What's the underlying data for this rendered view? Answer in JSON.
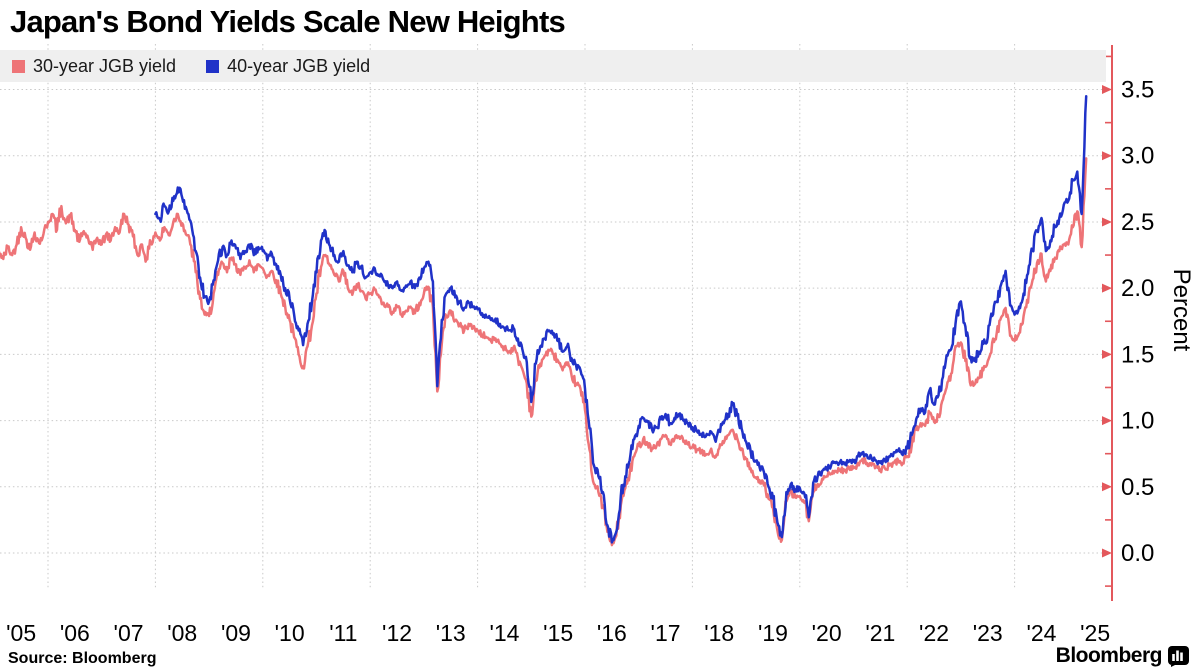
{
  "title": "Japan's Bond Yields Scale New Heights",
  "footer": {
    "source": "Source: Bloomberg",
    "branding": "Bloomberg"
  },
  "chart_data": {
    "type": "line",
    "title": "Japan's Bond Yields Scale New Heights",
    "xlabel": "",
    "ylabel": "Percent",
    "xlim": [
      2005.0,
      2025.6
    ],
    "ylim": [
      -0.35,
      3.83
    ],
    "y_ticks": [
      0.0,
      0.5,
      1.0,
      1.5,
      2.0,
      2.5,
      3.0,
      3.5
    ],
    "y_tick_labels": [
      "0.0",
      "0.5",
      "1.0",
      "1.5",
      "2.0",
      "2.5",
      "3.0",
      "3.5"
    ],
    "x_tick_years": [
      2005,
      2006,
      2007,
      2008,
      2009,
      2010,
      2011,
      2012,
      2013,
      2014,
      2015,
      2016,
      2017,
      2018,
      2019,
      2020,
      2021,
      2022,
      2023,
      2024,
      2025
    ],
    "x_tick_labels": [
      "'05",
      "'06",
      "'07",
      "'08",
      "'09",
      "'10",
      "'11",
      "'12",
      "'13",
      "'14",
      "'15",
      "'16",
      "'17",
      "'18",
      "'19",
      "'20",
      "'21",
      "'22",
      "'23",
      "'24",
      "'25"
    ],
    "grid_v_years": [
      2006,
      2008,
      2010,
      2012,
      2014,
      2016,
      2018,
      2020,
      2022,
      2024
    ],
    "grid_color": "#c9c9c9",
    "axis_color": "#e3585c",
    "legend_position": "top-left",
    "series": [
      {
        "name": "30-year JGB yield",
        "color": "#ee7477",
        "start_year": 2005.0,
        "interval_months": 1,
        "values": [
          2.35,
          2.28,
          2.22,
          2.31,
          2.25,
          2.33,
          2.46,
          2.38,
          2.29,
          2.42,
          2.34,
          2.41,
          2.5,
          2.56,
          2.44,
          2.62,
          2.49,
          2.55,
          2.44,
          2.35,
          2.43,
          2.37,
          2.29,
          2.38,
          2.33,
          2.41,
          2.36,
          2.46,
          2.42,
          2.56,
          2.48,
          2.39,
          2.25,
          2.33,
          2.22,
          2.34,
          2.42,
          2.36,
          2.46,
          2.4,
          2.5,
          2.56,
          2.49,
          2.4,
          2.32,
          2.12,
          1.92,
          1.8,
          1.79,
          1.96,
          2.1,
          2.19,
          2.12,
          2.23,
          2.18,
          2.1,
          2.16,
          2.21,
          2.12,
          2.18,
          2.15,
          2.09,
          2.13,
          2.06,
          1.96,
          1.86,
          1.76,
          1.63,
          1.5,
          1.41,
          1.56,
          1.72,
          1.96,
          2.16,
          2.25,
          2.17,
          2.1,
          2.05,
          2.13,
          2.0,
          1.95,
          2.03,
          1.98,
          1.92,
          1.96,
          1.99,
          1.93,
          1.89,
          1.86,
          1.82,
          1.86,
          1.8,
          1.83,
          1.86,
          1.81,
          1.89,
          1.96,
          2.01,
          1.86,
          1.22,
          1.58,
          1.79,
          1.83,
          1.76,
          1.72,
          1.68,
          1.73,
          1.7,
          1.68,
          1.65,
          1.63,
          1.6,
          1.62,
          1.58,
          1.55,
          1.52,
          1.55,
          1.47,
          1.39,
          1.28,
          1.03,
          1.3,
          1.43,
          1.49,
          1.53,
          1.5,
          1.45,
          1.38,
          1.42,
          1.34,
          1.28,
          1.24,
          1.08,
          0.78,
          0.52,
          0.46,
          0.36,
          0.16,
          0.06,
          0.13,
          0.36,
          0.49,
          0.6,
          0.73,
          0.81,
          0.86,
          0.83,
          0.79,
          0.81,
          0.86,
          0.89,
          0.83,
          0.86,
          0.88,
          0.84,
          0.82,
          0.8,
          0.78,
          0.76,
          0.74,
          0.77,
          0.72,
          0.79,
          0.83,
          0.89,
          0.93,
          0.87,
          0.79,
          0.71,
          0.64,
          0.57,
          0.55,
          0.51,
          0.41,
          0.34,
          0.17,
          0.1,
          0.39,
          0.46,
          0.42,
          0.43,
          0.38,
          0.24,
          0.46,
          0.52,
          0.56,
          0.58,
          0.6,
          0.62,
          0.63,
          0.62,
          0.64,
          0.64,
          0.68,
          0.71,
          0.68,
          0.66,
          0.65,
          0.63,
          0.64,
          0.66,
          0.68,
          0.7,
          0.68,
          0.73,
          0.81,
          0.93,
          0.98,
          0.96,
          1.06,
          0.99,
          1.03,
          1.16,
          1.29,
          1.36,
          1.56,
          1.59,
          1.45,
          1.29,
          1.27,
          1.32,
          1.38,
          1.45,
          1.59,
          1.66,
          1.78,
          1.85,
          1.64,
          1.6,
          1.66,
          1.79,
          1.89,
          2.06,
          2.19,
          2.26,
          2.05,
          2.13,
          2.23,
          2.28,
          2.33,
          2.33,
          2.46,
          2.58,
          2.31,
          2.98
        ]
      },
      {
        "name": "40-year JGB yield",
        "color": "#2032c8",
        "start_year": 2008.0,
        "interval_months": 1,
        "values": [
          2.56,
          2.52,
          2.62,
          2.58,
          2.66,
          2.76,
          2.68,
          2.59,
          2.49,
          2.28,
          2.08,
          1.94,
          1.9,
          2.06,
          2.21,
          2.31,
          2.25,
          2.36,
          2.3,
          2.22,
          2.28,
          2.33,
          2.25,
          2.31,
          2.28,
          2.21,
          2.26,
          2.18,
          2.1,
          2.0,
          1.92,
          1.8,
          1.68,
          1.57,
          1.73,
          1.9,
          2.12,
          2.36,
          2.43,
          2.32,
          2.25,
          2.2,
          2.28,
          2.17,
          2.12,
          2.2,
          2.15,
          2.08,
          2.12,
          2.15,
          2.1,
          2.06,
          2.02,
          2.0,
          2.05,
          1.98,
          2.02,
          2.05,
          2.0,
          2.08,
          2.15,
          2.2,
          2.05,
          1.26,
          1.76,
          1.96,
          2.0,
          1.93,
          1.89,
          1.85,
          1.89,
          1.86,
          1.84,
          1.81,
          1.78,
          1.76,
          1.77,
          1.73,
          1.7,
          1.68,
          1.7,
          1.62,
          1.54,
          1.44,
          1.14,
          1.43,
          1.56,
          1.62,
          1.68,
          1.66,
          1.6,
          1.52,
          1.56,
          1.47,
          1.42,
          1.38,
          1.24,
          0.94,
          0.66,
          0.58,
          0.46,
          0.21,
          0.08,
          0.16,
          0.43,
          0.58,
          0.7,
          0.86,
          0.96,
          1.02,
          0.99,
          0.93,
          0.95,
          1.01,
          1.05,
          0.98,
          1.02,
          1.05,
          1.0,
          0.98,
          0.95,
          0.92,
          0.9,
          0.88,
          0.92,
          0.86,
          0.93,
          0.98,
          1.05,
          1.12,
          1.04,
          0.94,
          0.84,
          0.77,
          0.69,
          0.65,
          0.61,
          0.5,
          0.41,
          0.23,
          0.12,
          0.46,
          0.52,
          0.48,
          0.49,
          0.45,
          0.27,
          0.53,
          0.58,
          0.62,
          0.64,
          0.66,
          0.68,
          0.69,
          0.67,
          0.69,
          0.69,
          0.73,
          0.76,
          0.74,
          0.72,
          0.7,
          0.68,
          0.7,
          0.73,
          0.76,
          0.77,
          0.74,
          0.79,
          0.89,
          1.01,
          1.09,
          1.06,
          1.23,
          1.12,
          1.19,
          1.33,
          1.49,
          1.56,
          1.79,
          1.9,
          1.71,
          1.47,
          1.45,
          1.52,
          1.58,
          1.63,
          1.79,
          1.9,
          2.03,
          2.13,
          1.87,
          1.8,
          1.86,
          1.96,
          2.11,
          2.29,
          2.43,
          2.53,
          2.28,
          2.36,
          2.46,
          2.53,
          2.63,
          2.66,
          2.82,
          2.88,
          2.56,
          3.45
        ]
      }
    ]
  }
}
